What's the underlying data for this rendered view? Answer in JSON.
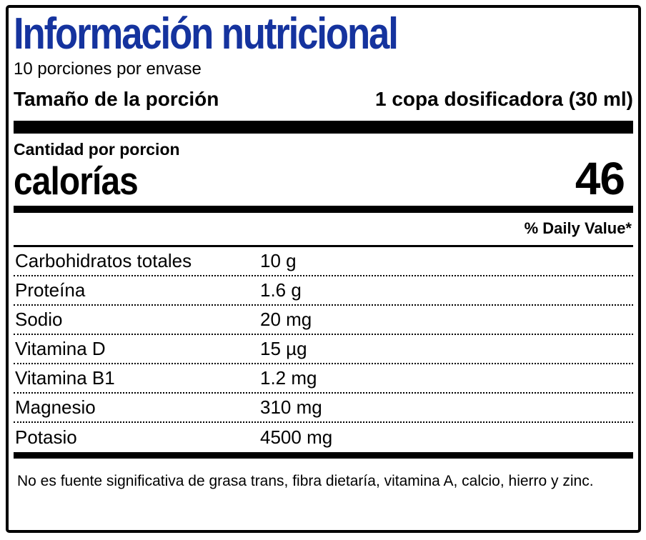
{
  "title": "Información nutricional",
  "servings_per_container": "10 porciones por envase",
  "serving_size": {
    "label": "Tamaño de la porción",
    "value": "1 copa dosificadora (30 ml)"
  },
  "amount_per_serving_label": "Cantidad por porcion",
  "calories": {
    "label": "calorías",
    "value": "46"
  },
  "daily_value_header": "% Daily Value*",
  "nutrients": [
    {
      "name": "Carbohidratos totales",
      "amount": "10 g"
    },
    {
      "name": "Proteína",
      "amount": "1.6 g"
    },
    {
      "name": "Sodio",
      "amount": "20 mg"
    },
    {
      "name": "Vitamina D",
      "amount": "15 µg"
    },
    {
      "name": "Vitamina B1",
      "amount": "1.2 mg"
    },
    {
      "name": "Magnesio",
      "amount": "310 mg"
    },
    {
      "name": "Potasio",
      "amount": "4500 mg"
    }
  ],
  "footnote": "No es fuente significativa de grasa trans, fibra dietaría, vitamina A, calcio, hierro y zinc.",
  "colors": {
    "title_blue": "#15339E",
    "text": "#000000",
    "background": "#FFFFFF"
  }
}
